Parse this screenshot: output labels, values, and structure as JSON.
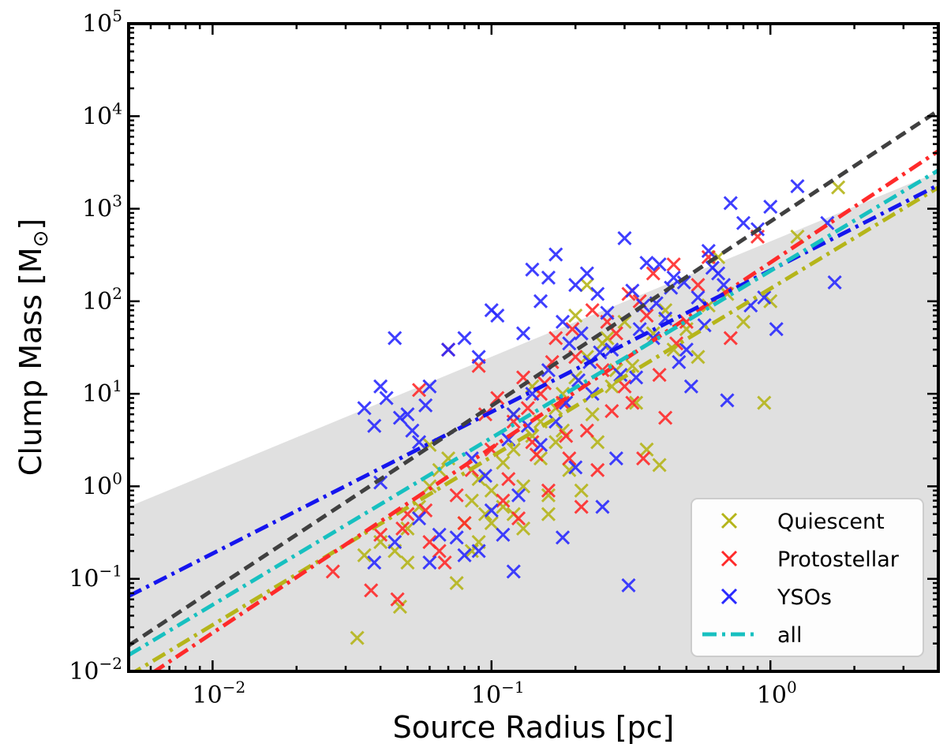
{
  "chart_data": {
    "type": "scatter",
    "xlabel": "Source Radius [pc]",
    "ylabel": "Clump Mass [M",
    "ylabel_unit_symbol": "⊙",
    "ylabel_close": "]",
    "x_scale": "log",
    "y_scale": "log",
    "xlim": [
      0.005,
      4.0
    ],
    "ylim": [
      0.01,
      100000
    ],
    "x_ticks": [
      {
        "base": "10",
        "exp": "−2",
        "value": 0.01
      },
      {
        "base": "10",
        "exp": "−1",
        "value": 0.1
      },
      {
        "base": "10",
        "exp": "0",
        "value": 1
      }
    ],
    "y_ticks": [
      {
        "base": "10",
        "exp": "−2",
        "value": 0.01
      },
      {
        "base": "10",
        "exp": "−1",
        "value": 0.1
      },
      {
        "base": "10",
        "exp": "0",
        "value": 1
      },
      {
        "base": "10",
        "exp": "1",
        "value": 10
      },
      {
        "base": "10",
        "exp": "2",
        "value": 100
      },
      {
        "base": "10",
        "exp": "3",
        "value": 1000
      },
      {
        "base": "10",
        "exp": "4",
        "value": 10000
      },
      {
        "base": "10",
        "exp": "5",
        "value": 100000
      }
    ],
    "shaded_region": {
      "description": "grey region below power law",
      "points": [
        [
          0.005,
          0.6
        ],
        [
          4.0,
          2500
        ],
        [
          4.0,
          0.01
        ],
        [
          0.005,
          0.01
        ]
      ],
      "color": "#e0e0e0"
    },
    "series": [
      {
        "name": "Quiescent",
        "kind": "scatter",
        "color": "#b5b51a",
        "points": [
          [
            0.033,
            0.023
          ],
          [
            0.047,
            0.05
          ],
          [
            0.075,
            0.09
          ],
          [
            0.035,
            0.18
          ],
          [
            0.04,
            0.25
          ],
          [
            0.05,
            0.35
          ],
          [
            0.055,
            0.6
          ],
          [
            0.06,
            1.0
          ],
          [
            0.065,
            1.5
          ],
          [
            0.07,
            2.0
          ],
          [
            0.08,
            0.4
          ],
          [
            0.085,
            0.7
          ],
          [
            0.09,
            1.2
          ],
          [
            0.095,
            0.5
          ],
          [
            0.1,
            0.9
          ],
          [
            0.11,
            1.8
          ],
          [
            0.12,
            2.5
          ],
          [
            0.13,
            0.35
          ],
          [
            0.14,
            3.5
          ],
          [
            0.15,
            5.0
          ],
          [
            0.16,
            0.8
          ],
          [
            0.17,
            7.0
          ],
          [
            0.18,
            10.0
          ],
          [
            0.2,
            15.0
          ],
          [
            0.22,
            25.0
          ],
          [
            0.24,
            3.0
          ],
          [
            0.26,
            40.0
          ],
          [
            0.28,
            18.0
          ],
          [
            0.3,
            60.0
          ],
          [
            0.33,
            8.0
          ],
          [
            0.36,
            2.5
          ],
          [
            0.4,
            1.7
          ],
          [
            0.45,
            30.0
          ],
          [
            0.5,
            50.0
          ],
          [
            0.55,
            25.0
          ],
          [
            0.6,
            90.0
          ],
          [
            0.7,
            120.0
          ],
          [
            0.8,
            60.0
          ],
          [
            0.95,
            8.0
          ],
          [
            1.0,
            100.0
          ],
          [
            1.25,
            500.0
          ],
          [
            1.75,
            1700.0
          ],
          [
            0.12,
            6.0
          ],
          [
            0.14,
            12.0
          ],
          [
            0.18,
            4.0
          ],
          [
            0.2,
            70.0
          ],
          [
            0.22,
            150.0
          ],
          [
            0.25,
            35.0
          ],
          [
            0.1,
            0.4
          ],
          [
            0.09,
            0.25
          ],
          [
            0.11,
            0.6
          ],
          [
            0.13,
            1.0
          ],
          [
            0.15,
            2.0
          ],
          [
            0.17,
            3.0
          ],
          [
            0.19,
            1.5
          ],
          [
            0.23,
            6.0
          ],
          [
            0.27,
            12.0
          ],
          [
            0.32,
            20.0
          ],
          [
            0.38,
            45.0
          ],
          [
            0.06,
            2.8
          ],
          [
            0.045,
            0.2
          ],
          [
            0.05,
            0.15
          ],
          [
            0.12,
            0.5
          ],
          [
            0.16,
            0.5
          ],
          [
            0.21,
            0.9
          ],
          [
            0.085,
            0.2
          ],
          [
            0.42,
            80.0
          ],
          [
            0.65,
            300.0
          ]
        ]
      },
      {
        "name": "Protostellar",
        "kind": "scatter",
        "color": "#ff2a2a",
        "points": [
          [
            0.027,
            0.12
          ],
          [
            0.037,
            0.075
          ],
          [
            0.046,
            0.06
          ],
          [
            0.04,
            0.3
          ],
          [
            0.05,
            0.5
          ],
          [
            0.055,
            11.0
          ],
          [
            0.06,
            0.25
          ],
          [
            0.07,
            30.0
          ],
          [
            0.075,
            0.8
          ],
          [
            0.085,
            1.5
          ],
          [
            0.09,
            20.0
          ],
          [
            0.1,
            2.5
          ],
          [
            0.11,
            0.7
          ],
          [
            0.12,
            5.0
          ],
          [
            0.13,
            15.0
          ],
          [
            0.14,
            3.0
          ],
          [
            0.16,
            0.9
          ],
          [
            0.18,
            8.0
          ],
          [
            0.2,
            25.0
          ],
          [
            0.22,
            4.0
          ],
          [
            0.24,
            1.5
          ],
          [
            0.26,
            60.0
          ],
          [
            0.3,
            12.0
          ],
          [
            0.34,
            100.0
          ],
          [
            0.38,
            200.0
          ],
          [
            0.42,
            5.5
          ],
          [
            0.46,
            35.0
          ],
          [
            0.55,
            150.0
          ],
          [
            0.6,
            300.0
          ],
          [
            0.72,
            40.0
          ],
          [
            0.9,
            500.0
          ],
          [
            0.15,
            10.0
          ],
          [
            0.17,
            40.0
          ],
          [
            0.19,
            2.0
          ],
          [
            0.21,
            0.6
          ],
          [
            0.25,
            18.0
          ],
          [
            0.28,
            45.0
          ],
          [
            0.32,
            8.0
          ],
          [
            0.36,
            70.0
          ],
          [
            0.08,
            0.4
          ],
          [
            0.065,
            0.2
          ],
          [
            0.095,
            6.0
          ],
          [
            0.105,
            9.0
          ],
          [
            0.115,
            1.2
          ],
          [
            0.125,
            0.45
          ],
          [
            0.135,
            7.0
          ],
          [
            0.145,
            2.2
          ],
          [
            0.155,
            13.0
          ],
          [
            0.165,
            22.0
          ],
          [
            0.185,
            3.5
          ],
          [
            0.195,
            50.0
          ],
          [
            0.23,
            80.0
          ],
          [
            0.27,
            6.5
          ],
          [
            0.31,
            120.0
          ],
          [
            0.4,
            16.0
          ],
          [
            0.5,
            60.0
          ],
          [
            0.45,
            250.0
          ],
          [
            0.35,
            2.0
          ],
          [
            0.048,
            0.35
          ],
          [
            0.058,
            0.55
          ],
          [
            0.068,
            0.15
          ]
        ]
      },
      {
        "name": "YSOs",
        "kind": "scatter",
        "color": "#2a2aff",
        "points": [
          [
            0.035,
            7.0
          ],
          [
            0.038,
            4.5
          ],
          [
            0.04,
            12.0
          ],
          [
            0.042,
            9.0
          ],
          [
            0.045,
            40.0
          ],
          [
            0.047,
            5.5
          ],
          [
            0.05,
            6.0
          ],
          [
            0.052,
            4.0
          ],
          [
            0.055,
            3.0
          ],
          [
            0.058,
            7.5
          ],
          [
            0.06,
            12.0
          ],
          [
            0.04,
            1.1
          ],
          [
            0.038,
            0.15
          ],
          [
            0.045,
            0.25
          ],
          [
            0.06,
            0.15
          ],
          [
            0.07,
            30.0
          ],
          [
            0.08,
            40.0
          ],
          [
            0.09,
            25.0
          ],
          [
            0.1,
            80.0
          ],
          [
            0.105,
            70.0
          ],
          [
            0.11,
            0.3
          ],
          [
            0.12,
            0.12
          ],
          [
            0.13,
            45.0
          ],
          [
            0.14,
            220.0
          ],
          [
            0.15,
            100.0
          ],
          [
            0.16,
            180.0
          ],
          [
            0.17,
            320.0
          ],
          [
            0.18,
            60.0
          ],
          [
            0.2,
            150.0
          ],
          [
            0.22,
            200.0
          ],
          [
            0.24,
            120.0
          ],
          [
            0.25,
            0.6
          ],
          [
            0.27,
            30.0
          ],
          [
            0.3,
            480.0
          ],
          [
            0.31,
            0.085
          ],
          [
            0.35,
            90.0
          ],
          [
            0.4,
            250.0
          ],
          [
            0.45,
            180.0
          ],
          [
            0.5,
            30.0
          ],
          [
            0.55,
            110.0
          ],
          [
            0.6,
            350.0
          ],
          [
            0.65,
            200.0
          ],
          [
            0.7,
            8.5
          ],
          [
            0.72,
            1150.0
          ],
          [
            0.8,
            700.0
          ],
          [
            0.9,
            600.0
          ],
          [
            1.0,
            1050.0
          ],
          [
            1.05,
            50.0
          ],
          [
            1.25,
            1750.0
          ],
          [
            1.6,
            700.0
          ],
          [
            1.7,
            160.0
          ],
          [
            0.18,
            0.28
          ],
          [
            0.2,
            1.6
          ],
          [
            0.23,
            10.0
          ],
          [
            0.28,
            2.0
          ],
          [
            0.33,
            15.0
          ],
          [
            0.38,
            40.0
          ],
          [
            0.42,
            65.0
          ],
          [
            0.47,
            22.0
          ],
          [
            0.52,
            12.0
          ],
          [
            0.58,
            55.0
          ],
          [
            0.1,
            0.55
          ],
          [
            0.09,
            0.2
          ],
          [
            0.08,
            0.18
          ],
          [
            0.065,
            0.3
          ],
          [
            0.055,
            0.45
          ],
          [
            0.12,
            6.0
          ],
          [
            0.14,
            10.0
          ],
          [
            0.16,
            18.0
          ],
          [
            0.19,
            35.0
          ],
          [
            0.21,
            45.0
          ],
          [
            0.26,
            75.0
          ],
          [
            0.32,
            130.0
          ],
          [
            0.36,
            260.0
          ],
          [
            0.075,
            0.28
          ],
          [
            0.085,
            2.0
          ],
          [
            0.095,
            1.3
          ],
          [
            0.115,
            3.2
          ],
          [
            0.125,
            0.8
          ],
          [
            0.135,
            4.5
          ],
          [
            0.15,
            2.8
          ],
          [
            0.17,
            5.0
          ],
          [
            0.185,
            8.0
          ],
          [
            0.205,
            14.0
          ],
          [
            0.225,
            22.0
          ],
          [
            0.245,
            28.0
          ],
          [
            0.29,
            16.0
          ],
          [
            0.34,
            50.0
          ],
          [
            0.39,
            95.0
          ],
          [
            0.44,
            140.0
          ],
          [
            0.49,
            160.0
          ],
          [
            0.62,
            230.0
          ],
          [
            0.68,
            150.0
          ],
          [
            0.85,
            90.0
          ],
          [
            0.95,
            110.0
          ]
        ]
      },
      {
        "name": "Quiescent fit",
        "kind": "line",
        "color": "#b5b51a",
        "dash": "dashdot",
        "x": [
          0.005,
          4.0
        ],
        "y": [
          0.009,
          1700
        ]
      },
      {
        "name": "Protostellar fit",
        "kind": "line",
        "color": "#ff2a2a",
        "dash": "dashdot",
        "x": [
          0.005,
          4.0
        ],
        "y": [
          0.0065,
          4200
        ]
      },
      {
        "name": "YSOs fit",
        "kind": "line",
        "color": "#1515ee",
        "dash": "dashdot",
        "x": [
          0.005,
          4.0
        ],
        "y": [
          0.065,
          1800
        ]
      },
      {
        "name": "all",
        "kind": "line",
        "color": "#17c0c0",
        "dash": "dashdot",
        "x": [
          0.005,
          4.0
        ],
        "y": [
          0.015,
          2600
        ]
      },
      {
        "name": "reference",
        "kind": "line",
        "color": "#404040",
        "dash": "dashed",
        "x": [
          0.005,
          4.0
        ],
        "y": [
          0.019,
          11500
        ]
      }
    ],
    "legend": {
      "position": "bottom-right",
      "entries": [
        {
          "label": "Quiescent",
          "marker": "x",
          "color": "#b5b51a"
        },
        {
          "label": "Protostellar",
          "marker": "x",
          "color": "#ff2a2a"
        },
        {
          "label": "YSOs",
          "marker": "x",
          "color": "#2a2aff"
        },
        {
          "label": "all",
          "marker": "dashdot",
          "color": "#17c0c0"
        }
      ]
    }
  }
}
